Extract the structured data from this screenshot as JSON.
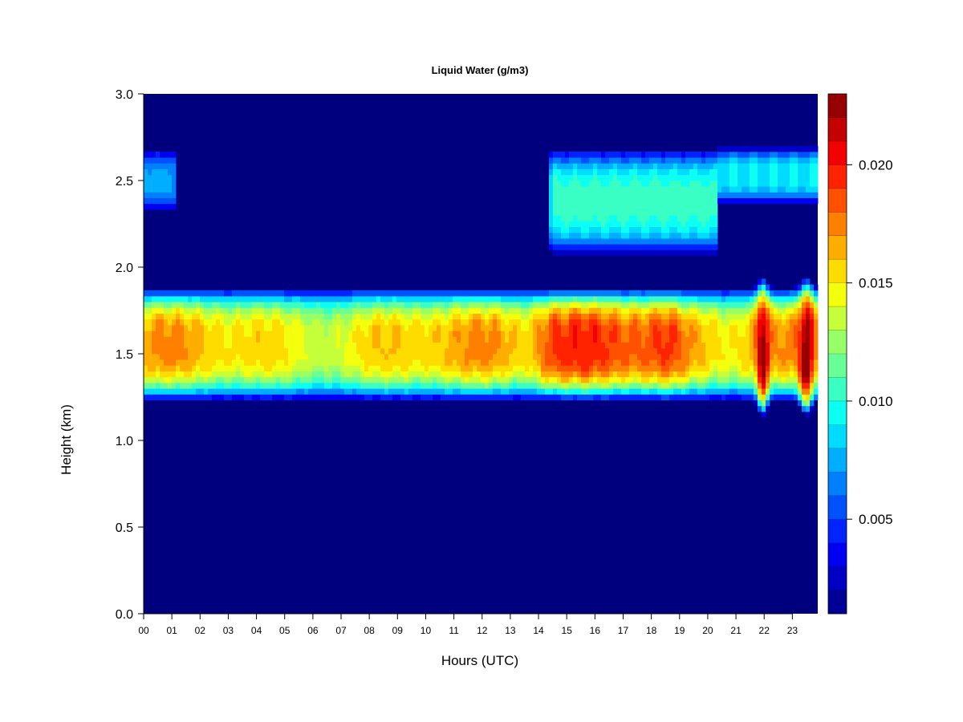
{
  "chart_data": {
    "type": "heatmap",
    "title": "Liquid Water (g/m3)",
    "xlabel": "Hours (UTC)",
    "ylabel": "Height (km)",
    "x_tick_labels": [
      "00",
      "01",
      "02",
      "03",
      "04",
      "05",
      "06",
      "07",
      "08",
      "09",
      "10",
      "11",
      "12",
      "13",
      "14",
      "15",
      "16",
      "17",
      "18",
      "19",
      "20",
      "21",
      "22",
      "23"
    ],
    "x_range_hours": [
      0,
      23.9
    ],
    "y_ticks": [
      0.0,
      0.5,
      1.0,
      1.5,
      2.0,
      2.5,
      3.0
    ],
    "y_tick_labels": [
      "0.0",
      "0.5",
      "1.0",
      "1.5",
      "2.0",
      "2.5",
      "3.0"
    ],
    "ylim": [
      0.0,
      3.0
    ],
    "colorbar": {
      "range": [
        0.001,
        0.023
      ],
      "ticks": [
        0.005,
        0.01,
        0.015,
        0.02
      ],
      "tick_labels": [
        "0.005",
        "0.010",
        "0.015",
        "0.020"
      ],
      "levels": 22,
      "colormap": "jet",
      "position": "right"
    },
    "features": [
      {
        "name": "main cloud layer",
        "hours": [
          0,
          23.9
        ],
        "height_km": [
          1.15,
          1.9
        ],
        "peak_height_km": 1.55,
        "peak_value": 0.017,
        "max_value_14_19h": 0.02
      },
      {
        "name": "late-day intense cells",
        "hours": [
          21.4,
          23.9
        ],
        "height_km": [
          1.05,
          1.95
        ],
        "peak_value": 0.022
      },
      {
        "name": "upper cloud layer",
        "hours": [
          14.3,
          23.9
        ],
        "height_km": [
          2.05,
          2.7
        ],
        "peak_value": 0.01
      },
      {
        "name": "early upper patch",
        "hours": [
          0,
          1.1
        ],
        "height_km": [
          2.3,
          2.7
        ],
        "peak_value": 0.008
      }
    ]
  }
}
